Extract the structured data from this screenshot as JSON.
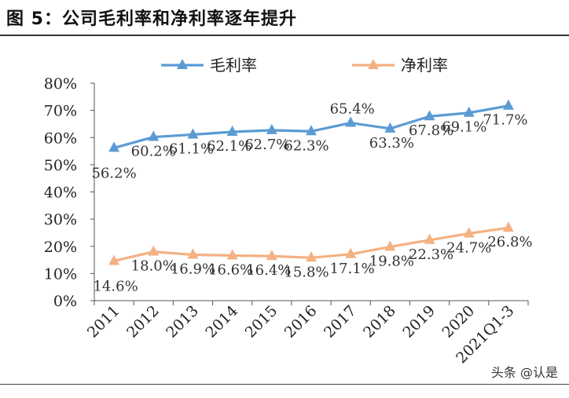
{
  "page": {
    "title": "图 5：公司毛利率和净利率逐年提升",
    "watermark": "头条 @认是"
  },
  "chart_data": {
    "type": "line",
    "categories": [
      "2011",
      "2012",
      "2013",
      "2014",
      "2015",
      "2016",
      "2017",
      "2018",
      "2019",
      "2020",
      "2021Q1-3"
    ],
    "ylim": [
      0,
      80
    ],
    "yticks": [
      0,
      10,
      20,
      30,
      40,
      50,
      60,
      70,
      80
    ],
    "ytick_labels": [
      "0%",
      "10%",
      "20%",
      "30%",
      "40%",
      "50%",
      "60%",
      "70%",
      "80%"
    ],
    "grid": false,
    "legend_position": "top",
    "series": [
      {
        "name": "毛利率",
        "color": "#5b9bd5",
        "values": [
          56.2,
          60.2,
          61.1,
          62.1,
          62.7,
          62.3,
          65.4,
          63.3,
          67.8,
          69.1,
          71.7
        ],
        "labels": [
          "56.2%",
          "60.2%",
          "61.1%",
          "62.1%",
          "62.7%",
          "62.3%",
          "65.4%",
          "63.3%",
          "67.8%",
          "69.1%",
          "71.7%"
        ]
      },
      {
        "name": "净利率",
        "color": "#f4b183",
        "values": [
          14.6,
          18.0,
          16.9,
          16.6,
          16.4,
          15.8,
          17.1,
          19.8,
          22.3,
          24.7,
          26.8
        ],
        "labels": [
          "14.6%",
          "18.0%",
          "16.9%",
          "16.6%",
          "16.4%",
          "15.8%",
          "17.1%",
          "19.8%",
          "22.3%",
          "24.7%",
          "26.8%"
        ]
      }
    ]
  }
}
